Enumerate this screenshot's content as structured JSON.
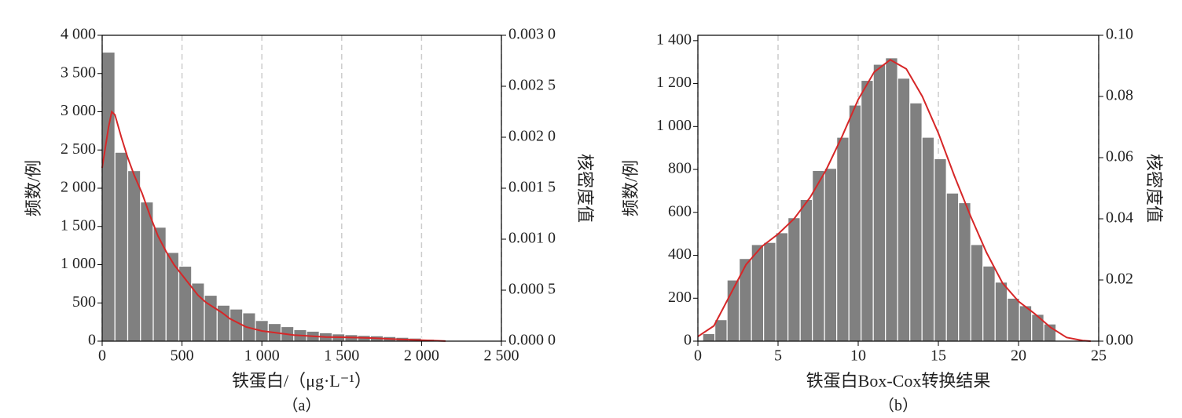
{
  "chart_data": [
    {
      "type": "histogram",
      "xlabel": "铁蛋白/（μg·L⁻¹）",
      "ylabel": "频数/例",
      "y2label": "核密度值",
      "caption": "（a）",
      "bins": [
        0,
        80,
        160,
        240,
        320,
        400,
        480,
        560,
        640,
        720,
        800,
        880,
        960,
        1040,
        1120,
        1200,
        1280,
        1360,
        1440,
        1520,
        1600,
        1680,
        1760,
        1840,
        1920,
        2000,
        2080,
        2160
      ],
      "values": [
        3780,
        2470,
        2230,
        1820,
        1490,
        1160,
        980,
        760,
        600,
        470,
        420,
        370,
        270,
        230,
        190,
        150,
        130,
        110,
        95,
        85,
        75,
        70,
        60,
        50,
        40,
        25,
        10
      ],
      "color": "#808080",
      "series": [
        {
          "color": "#d62728",
          "axis": "y2",
          "x": [
            0,
            20,
            40,
            60,
            80,
            120,
            160,
            200,
            250,
            300,
            350,
            400,
            450,
            500,
            550,
            600,
            650,
            700,
            750,
            800,
            900,
            1000,
            1100,
            1200,
            1300,
            1400,
            1500,
            1600,
            1700,
            1800,
            1900,
            2000,
            2100,
            2150
          ],
          "values": [
            0.0017,
            0.0019,
            0.0021,
            0.00225,
            0.00222,
            0.002,
            0.0018,
            0.00163,
            0.00145,
            0.00123,
            0.00103,
            0.00088,
            0.00075,
            0.00065,
            0.00055,
            0.00045,
            0.00038,
            0.00033,
            0.00028,
            0.00022,
            0.00014,
            0.0001,
            8e-05,
            6e-05,
            5e-05,
            4e-05,
            3.8e-05,
            3.5e-05,
            3e-05,
            2.2e-05,
            1.5e-05,
            1e-05,
            4e-06,
            1e-06
          ]
        }
      ],
      "xlim": [
        0,
        2500
      ],
      "xticks": [
        0,
        500,
        {
          "value": 1000,
          "label": "1 000"
        },
        {
          "value": 1500,
          "label": "1 500"
        },
        {
          "value": 2000,
          "label": "2 000"
        },
        {
          "value": 2500,
          "label": "2 500"
        }
      ],
      "ylim": [
        0,
        4000
      ],
      "yticks": [
        0,
        500,
        {
          "value": 1000,
          "label": "1 000"
        },
        {
          "value": 1500,
          "label": "1 500"
        },
        {
          "value": 2000,
          "label": "2 000"
        },
        {
          "value": 2500,
          "label": "2 500"
        },
        {
          "value": 3000,
          "label": "3 000"
        },
        {
          "value": 3500,
          "label": "3 500"
        },
        {
          "value": 4000,
          "label": "4 000"
        }
      ],
      "y2lim": [
        0,
        0.003
      ],
      "y2ticks": [
        {
          "value": 0,
          "label": "0.000 0"
        },
        {
          "value": 0.0005,
          "label": "0.000 5"
        },
        {
          "value": 0.001,
          "label": "0.001 0"
        },
        {
          "value": 0.0015,
          "label": "0.001 5"
        },
        {
          "value": 0.002,
          "label": "0.002 0"
        },
        {
          "value": 0.0025,
          "label": "0.002 5"
        },
        {
          "value": 0.003,
          "label": "0.003 0"
        }
      ],
      "grid": true
    },
    {
      "type": "histogram",
      "xlabel": "铁蛋白Box-Cox转换结果",
      "ylabel": "频数/例",
      "y2label": "核密度值",
      "caption": "（b）",
      "bins": [
        0.3,
        1.06,
        1.82,
        2.58,
        3.34,
        4.1,
        4.86,
        5.62,
        6.38,
        7.14,
        7.9,
        8.66,
        9.42,
        10.18,
        10.94,
        11.7,
        12.46,
        13.22,
        13.98,
        14.74,
        15.5,
        16.26,
        17.02,
        17.78,
        18.54,
        19.3,
        20.06,
        20.82,
        21.58,
        22.34
      ],
      "values": [
        35,
        100,
        285,
        385,
        450,
        460,
        505,
        575,
        660,
        795,
        805,
        950,
        1100,
        1215,
        1290,
        1320,
        1225,
        1110,
        950,
        850,
        690,
        645,
        450,
        350,
        275,
        200,
        165,
        125,
        80
      ],
      "color": "#808080",
      "series": [
        {
          "color": "#d62728",
          "axis": "y2",
          "x": [
            0,
            1,
            2,
            3,
            4,
            5,
            6,
            7,
            8,
            9,
            10,
            11,
            12,
            13,
            14,
            15,
            16,
            17,
            18,
            19,
            20,
            21,
            22,
            23,
            24,
            24.5
          ],
          "values": [
            0.0015,
            0.005,
            0.015,
            0.025,
            0.031,
            0.035,
            0.04,
            0.047,
            0.056,
            0.067,
            0.079,
            0.088,
            0.092,
            0.089,
            0.08,
            0.068,
            0.054,
            0.041,
            0.029,
            0.019,
            0.013,
            0.009,
            0.0045,
            0.0012,
            0.0002,
            0
          ]
        }
      ],
      "xlim": [
        0,
        25
      ],
      "xticks": [
        0,
        5,
        10,
        15,
        20,
        25
      ],
      "ylim": [
        0,
        1425
      ],
      "yticks": [
        0,
        200,
        400,
        600,
        800,
        {
          "value": 1000,
          "label": "1 000"
        },
        {
          "value": 1200,
          "label": "1 200"
        },
        {
          "value": 1400,
          "label": "1 400"
        }
      ],
      "y2lim": [
        0,
        0.1
      ],
      "y2ticks": [
        {
          "value": 0,
          "label": "0.00"
        },
        {
          "value": 0.02,
          "label": "0.02"
        },
        {
          "value": 0.04,
          "label": "0.04"
        },
        {
          "value": 0.06,
          "label": "0.06"
        },
        {
          "value": 0.08,
          "label": "0.08"
        },
        {
          "value": 0.1,
          "label": "0.10"
        }
      ],
      "grid": true
    }
  ]
}
